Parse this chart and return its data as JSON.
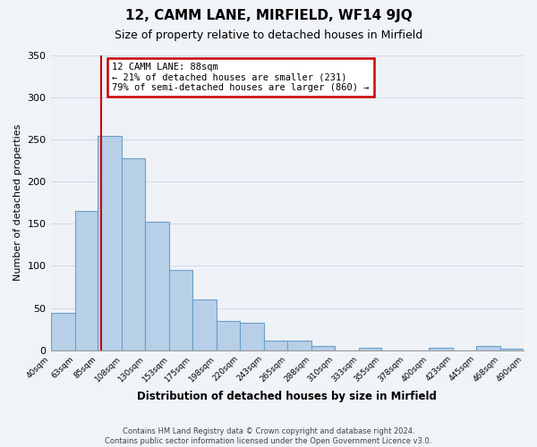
{
  "title": "12, CAMM LANE, MIRFIELD, WF14 9JQ",
  "subtitle": "Size of property relative to detached houses in Mirfield",
  "xlabel": "Distribution of detached houses by size in Mirfield",
  "ylabel": "Number of detached properties",
  "bar_edges": [
    40,
    63,
    85,
    108,
    130,
    153,
    175,
    198,
    220,
    243,
    265,
    288,
    310,
    333,
    355,
    378,
    400,
    423,
    445,
    468,
    490
  ],
  "bar_heights": [
    44,
    165,
    254,
    228,
    152,
    95,
    60,
    35,
    33,
    11,
    11,
    5,
    0,
    3,
    0,
    0,
    3,
    0,
    5,
    2
  ],
  "bar_color": "#b8cfe8",
  "bar_edge_color": "#6aa0c8",
  "grid_color": "#d0dce8",
  "background_color": "#eef2f7",
  "vline_x": 88,
  "vline_color": "#cc0000",
  "annotation_line1": "12 CAMM LANE: 88sqm",
  "annotation_line2": "← 21% of detached houses are smaller (231)",
  "annotation_line3": "79% of semi-detached houses are larger (860) →",
  "annotation_box_color": "#cc0000",
  "tick_labels": [
    "40sqm",
    "63sqm",
    "85sqm",
    "108sqm",
    "130sqm",
    "153sqm",
    "175sqm",
    "198sqm",
    "220sqm",
    "243sqm",
    "265sqm",
    "288sqm",
    "310sqm",
    "333sqm",
    "355sqm",
    "378sqm",
    "400sqm",
    "423sqm",
    "445sqm",
    "468sqm",
    "490sqm"
  ],
  "ylim": [
    0,
    350
  ],
  "yticks": [
    0,
    50,
    100,
    150,
    200,
    250,
    300,
    350
  ],
  "footer_line1": "Contains HM Land Registry data © Crown copyright and database right 2024.",
  "footer_line2": "Contains public sector information licensed under the Open Government Licence v3.0."
}
